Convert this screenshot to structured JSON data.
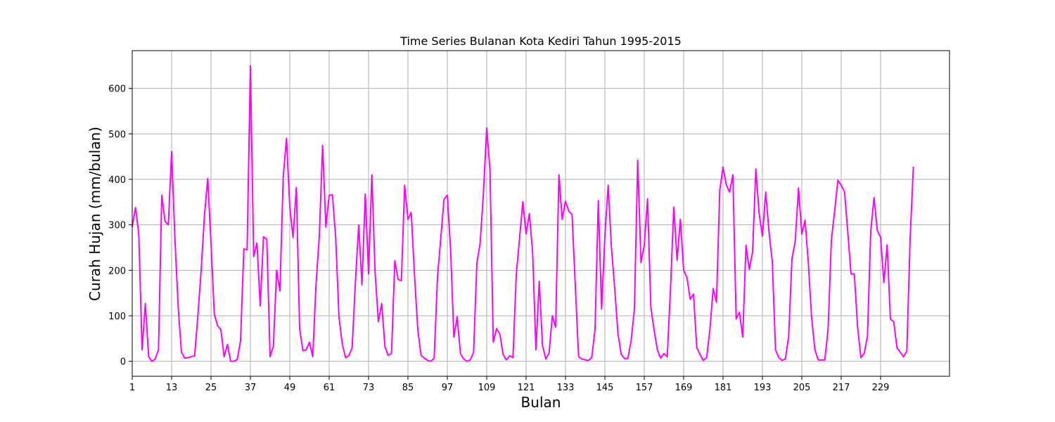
{
  "chart_data": {
    "type": "line",
    "title": "Time Series Bulanan Kota Kediri Tahun 1995-2015",
    "xlabel": "Bulan",
    "ylabel": "Curah Hujan (mm/bulan)",
    "xlim": [
      1,
      250
    ],
    "ylim": [
      -33,
      683
    ],
    "x_ticks": [
      1,
      13,
      25,
      37,
      49,
      61,
      73,
      85,
      97,
      109,
      121,
      133,
      145,
      157,
      169,
      181,
      193,
      205,
      217,
      229
    ],
    "y_ticks": [
      0,
      100,
      200,
      300,
      400,
      500,
      600
    ],
    "grid": true,
    "line_color": "#ff00ff",
    "series": [
      {
        "x_start": 1,
        "values": [
          295,
          338,
          280,
          25,
          127,
          10,
          0,
          5,
          25,
          365,
          308,
          300,
          461,
          270,
          120,
          20,
          7,
          8,
          10,
          12,
          100,
          200,
          320,
          402,
          260,
          105,
          78,
          70,
          10,
          37,
          0,
          0,
          4,
          45,
          247,
          245,
          650,
          230,
          260,
          122,
          274,
          268,
          10,
          33,
          200,
          155,
          405,
          490,
          340,
          272,
          382,
          72,
          23,
          25,
          42,
          10,
          170,
          275,
          475,
          295,
          365,
          366,
          270,
          97,
          38,
          8,
          12,
          30,
          175,
          300,
          168,
          368,
          192,
          410,
          195,
          87,
          127,
          32,
          13,
          17,
          221,
          180,
          177,
          387,
          312,
          327,
          190,
          70,
          13,
          7,
          2,
          0,
          7,
          185,
          270,
          356,
          365,
          245,
          53,
          98,
          17,
          5,
          0,
          3,
          20,
          215,
          260,
          370,
          513,
          420,
          42,
          72,
          60,
          15,
          3,
          12,
          8,
          190,
          270,
          351,
          280,
          325,
          238,
          25,
          176,
          35,
          5,
          18,
          100,
          75,
          410,
          312,
          352,
          330,
          323,
          165,
          10,
          5,
          3,
          2,
          8,
          70,
          353,
          115,
          275,
          387,
          250,
          160,
          60,
          15,
          6,
          6,
          45,
          115,
          442,
          217,
          255,
          357,
          120,
          68,
          25,
          7,
          17,
          10,
          160,
          339,
          222,
          312,
          200,
          185,
          136,
          148,
          30,
          15,
          2,
          8,
          70,
          160,
          130,
          375,
          427,
          388,
          372,
          410,
          93,
          108,
          53,
          255,
          202,
          240,
          423,
          325,
          275,
          372,
          285,
          220,
          25,
          8,
          2,
          5,
          55,
          225,
          265,
          381,
          280,
          310,
          215,
          95,
          25,
          3,
          3,
          3,
          70,
          265,
          330,
          398,
          387,
          373,
          285,
          192,
          192,
          75,
          8,
          17,
          55,
          285,
          360,
          288,
          273,
          173,
          256,
          93,
          87,
          30,
          20,
          10,
          22,
          270,
          428
        ]
      }
    ]
  }
}
